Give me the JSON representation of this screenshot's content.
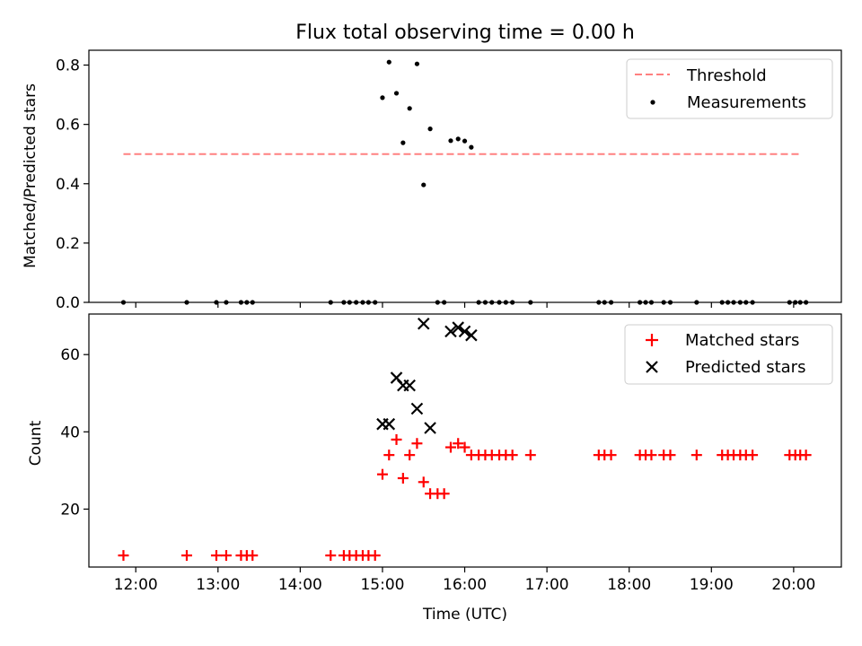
{
  "figure": {
    "title": "Flux total observing time = 0.00 h"
  },
  "chart_data": [
    {
      "type": "scatter",
      "ylabel": "Matched/Predicted stars",
      "ylim": [
        0,
        0.85
      ],
      "yticks": [
        0.0,
        0.2,
        0.4,
        0.6,
        0.8
      ],
      "ytick_labels": [
        "0.0",
        "0.2",
        "0.4",
        "0.6",
        "0.8"
      ],
      "xlim_hours": [
        11.43,
        20.58
      ],
      "threshold": {
        "name": "Threshold",
        "value": 0.5,
        "x_range_hours": [
          11.85,
          20.1
        ],
        "color": "#ff8080"
      },
      "series": [
        {
          "name": "Measurements",
          "color": "#000000",
          "marker": "dot",
          "x_hours": [
            11.85,
            12.62,
            12.98,
            13.1,
            13.28,
            13.35,
            13.42,
            14.37,
            14.53,
            14.6,
            14.68,
            14.76,
            14.83,
            14.91,
            15.0,
            15.08,
            15.17,
            15.25,
            15.33,
            15.42,
            15.5,
            15.58,
            15.67,
            15.75,
            15.83,
            15.92,
            16.0,
            16.08,
            16.17,
            16.25,
            16.33,
            16.42,
            16.5,
            16.58,
            16.8,
            17.63,
            17.7,
            17.78,
            18.13,
            18.2,
            18.27,
            18.42,
            18.5,
            18.82,
            19.13,
            19.2,
            19.27,
            19.35,
            19.42,
            19.5,
            19.95,
            20.02,
            20.08,
            20.15
          ],
          "y": [
            0,
            0,
            0,
            0,
            0,
            0,
            0,
            0,
            0,
            0,
            0,
            0,
            0,
            0,
            0.69,
            0.81,
            0.705,
            0.538,
            0.654,
            0.804,
            0.396,
            0.585,
            0,
            0,
            0.545,
            0.551,
            0.544,
            0.523,
            0,
            0,
            0,
            0,
            0,
            0,
            0,
            0,
            0,
            0,
            0,
            0,
            0,
            0,
            0,
            0,
            0,
            0,
            0,
            0,
            0,
            0,
            0,
            0,
            0,
            0
          ]
        }
      ],
      "legend": {
        "position": "upper-right",
        "entries": [
          "Threshold",
          "Measurements"
        ]
      }
    },
    {
      "type": "scatter",
      "xlabel": "Time (UTC)",
      "ylabel": "Count",
      "ylim": [
        5,
        70.5
      ],
      "yticks": [
        20,
        40,
        60
      ],
      "ytick_labels": [
        "20",
        "40",
        "60"
      ],
      "xlim_hours": [
        11.43,
        20.58
      ],
      "xticks_hours": [
        12,
        13,
        14,
        15,
        16,
        17,
        18,
        19,
        20
      ],
      "xtick_labels": [
        "12:00",
        "13:00",
        "14:00",
        "15:00",
        "16:00",
        "17:00",
        "18:00",
        "19:00",
        "20:00"
      ],
      "series": [
        {
          "name": "Matched stars",
          "color": "#ff0000",
          "marker": "plus",
          "x_hours": [
            11.85,
            12.62,
            12.98,
            13.1,
            13.28,
            13.35,
            13.42,
            14.37,
            14.53,
            14.6,
            14.68,
            14.76,
            14.83,
            14.91,
            15.0,
            15.08,
            15.17,
            15.25,
            15.33,
            15.42,
            15.5,
            15.58,
            15.67,
            15.75,
            15.83,
            15.92,
            16.0,
            16.08,
            16.17,
            16.25,
            16.33,
            16.42,
            16.5,
            16.58,
            16.8,
            17.63,
            17.7,
            17.78,
            18.13,
            18.2,
            18.27,
            18.42,
            18.5,
            18.82,
            19.13,
            19.2,
            19.27,
            19.35,
            19.42,
            19.5,
            19.95,
            20.02,
            20.08,
            20.15
          ],
          "y": [
            8,
            8,
            8,
            8,
            8,
            8,
            8,
            8,
            8,
            8,
            8,
            8,
            8,
            8,
            29,
            34,
            38,
            28,
            34,
            37,
            27,
            24,
            24,
            24,
            36,
            37,
            36,
            34,
            34,
            34,
            34,
            34,
            34,
            34,
            34,
            34,
            34,
            34,
            34,
            34,
            34,
            34,
            34,
            34,
            34,
            34,
            34,
            34,
            34,
            34,
            34,
            34,
            34,
            34
          ]
        },
        {
          "name": "Predicted stars",
          "color": "#000000",
          "marker": "x",
          "x_hours": [
            15.0,
            15.08,
            15.17,
            15.25,
            15.33,
            15.42,
            15.5,
            15.58,
            15.83,
            15.92,
            16.0,
            16.08
          ],
          "y": [
            42,
            42,
            54,
            52,
            52,
            46,
            68,
            41,
            66,
            67,
            66,
            65
          ]
        }
      ],
      "legend": {
        "position": "upper-right",
        "entries": [
          "Matched stars",
          "Predicted stars"
        ]
      }
    }
  ]
}
